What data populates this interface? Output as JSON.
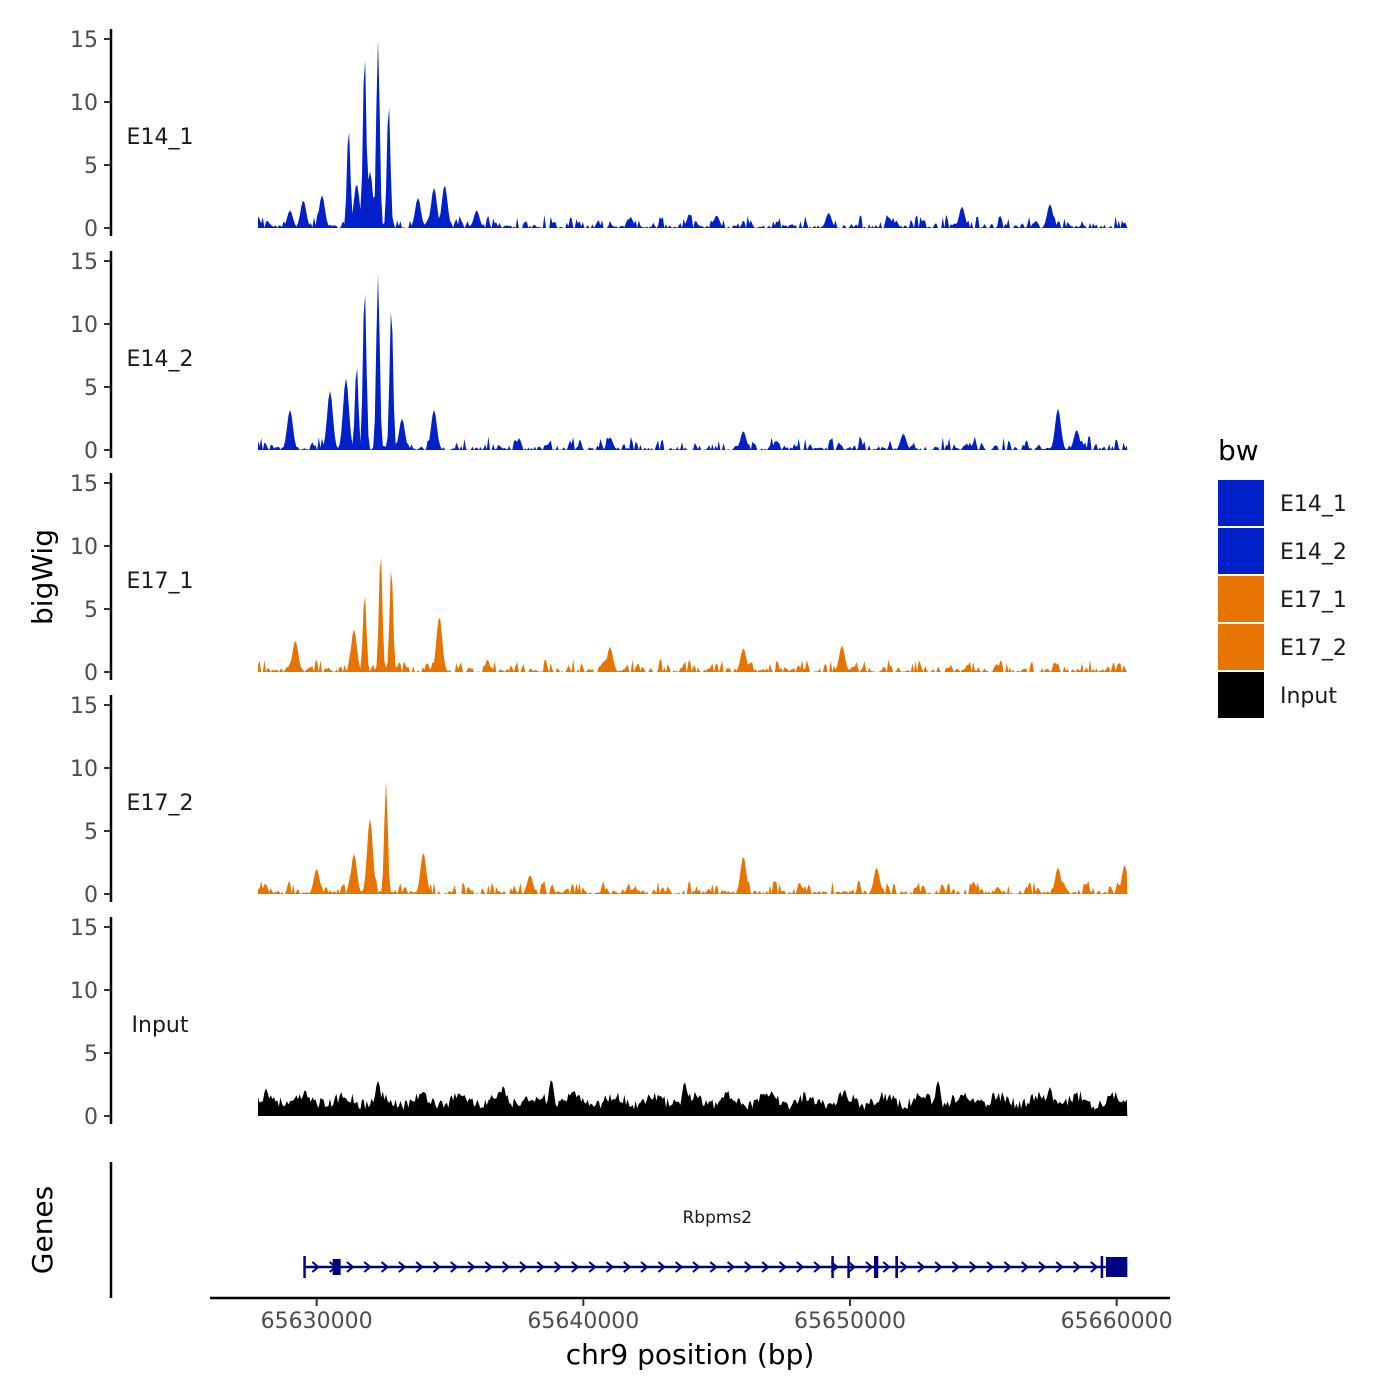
{
  "chart_data": {
    "type": "area",
    "ylabel": "bigWig",
    "xlabel": "chr9 position (bp)",
    "xlim": [
      65626000,
      65662000
    ],
    "data_x_range": [
      65627800,
      65660400
    ],
    "ylim": [
      0,
      15
    ],
    "yticks": [
      "0",
      "5",
      "10",
      "15"
    ],
    "xticks": [
      {
        "value": 65630000,
        "label": "65630000"
      },
      {
        "value": 65640000,
        "label": "65640000"
      },
      {
        "value": 65650000,
        "label": "65650000"
      },
      {
        "value": 65660000,
        "label": "65660000"
      }
    ],
    "series": [
      {
        "name": "E14_1",
        "color": "#0020C8",
        "peaks": [
          {
            "x": 65629000,
            "y": 1.4
          },
          {
            "x": 65629500,
            "y": 2.2
          },
          {
            "x": 65630200,
            "y": 2.6
          },
          {
            "x": 65631200,
            "y": 8.0
          },
          {
            "x": 65631500,
            "y": 3.5
          },
          {
            "x": 65631800,
            "y": 14.0
          },
          {
            "x": 65632000,
            "y": 4.5
          },
          {
            "x": 65632300,
            "y": 15.0
          },
          {
            "x": 65632700,
            "y": 10.0
          },
          {
            "x": 65633800,
            "y": 2.4
          },
          {
            "x": 65634400,
            "y": 3.2
          },
          {
            "x": 65634800,
            "y": 3.4
          },
          {
            "x": 65636000,
            "y": 1.4
          },
          {
            "x": 65645000,
            "y": 1.0
          },
          {
            "x": 65649200,
            "y": 1.2
          },
          {
            "x": 65654200,
            "y": 1.7
          },
          {
            "x": 65657500,
            "y": 1.9
          }
        ]
      },
      {
        "name": "E14_2",
        "color": "#0020C8",
        "peaks": [
          {
            "x": 65629000,
            "y": 3.2
          },
          {
            "x": 65630500,
            "y": 4.7
          },
          {
            "x": 65631100,
            "y": 5.7
          },
          {
            "x": 65631500,
            "y": 6.8
          },
          {
            "x": 65631800,
            "y": 13.0
          },
          {
            "x": 65632300,
            "y": 14.0
          },
          {
            "x": 65632800,
            "y": 11.5
          },
          {
            "x": 65633200,
            "y": 2.5
          },
          {
            "x": 65634400,
            "y": 3.2
          },
          {
            "x": 65641000,
            "y": 1.0
          },
          {
            "x": 65646000,
            "y": 1.5
          },
          {
            "x": 65652000,
            "y": 1.3
          },
          {
            "x": 65657800,
            "y": 3.3
          },
          {
            "x": 65658500,
            "y": 1.6
          }
        ]
      },
      {
        "name": "E17_1",
        "color": "#E87400",
        "peaks": [
          {
            "x": 65629200,
            "y": 2.5
          },
          {
            "x": 65631400,
            "y": 3.4
          },
          {
            "x": 65631800,
            "y": 6.3
          },
          {
            "x": 65632400,
            "y": 9.6
          },
          {
            "x": 65632800,
            "y": 8.5
          },
          {
            "x": 65634600,
            "y": 4.4
          },
          {
            "x": 65641000,
            "y": 2.0
          },
          {
            "x": 65646000,
            "y": 1.9
          },
          {
            "x": 65649700,
            "y": 2.1
          }
        ]
      },
      {
        "name": "E17_2",
        "color": "#E87400",
        "peaks": [
          {
            "x": 65630000,
            "y": 2.0
          },
          {
            "x": 65631400,
            "y": 3.2
          },
          {
            "x": 65632000,
            "y": 6.0
          },
          {
            "x": 65632600,
            "y": 9.0
          },
          {
            "x": 65634000,
            "y": 3.3
          },
          {
            "x": 65638000,
            "y": 1.5
          },
          {
            "x": 65646000,
            "y": 3.0
          },
          {
            "x": 65651000,
            "y": 2.1
          },
          {
            "x": 65657800,
            "y": 2.1
          },
          {
            "x": 65660300,
            "y": 2.3
          }
        ]
      },
      {
        "name": "Input",
        "color": "#000000",
        "peaks": [
          {
            "x": 65628100,
            "y": 2.2
          },
          {
            "x": 65632300,
            "y": 2.8
          },
          {
            "x": 65637000,
            "y": 2.4
          },
          {
            "x": 65638800,
            "y": 2.9
          },
          {
            "x": 65643800,
            "y": 2.7
          },
          {
            "x": 65649800,
            "y": 2.1
          },
          {
            "x": 65653300,
            "y": 2.8
          },
          {
            "x": 65657500,
            "y": 2.3
          }
        ]
      }
    ],
    "legend": {
      "title": "bw",
      "position": "right",
      "items": [
        {
          "label": "E14_1",
          "color": "#0020C8"
        },
        {
          "label": "E14_2",
          "color": "#0020C8"
        },
        {
          "label": "E17_1",
          "color": "#E87400"
        },
        {
          "label": "E17_2",
          "color": "#E87400"
        },
        {
          "label": "Input",
          "color": "#000000"
        }
      ]
    },
    "genes_track": {
      "label": "Genes",
      "color": "#000080",
      "genes": [
        {
          "name": "Rbpms2",
          "strand": "+",
          "start": 65629500,
          "end": 65660400,
          "exons": [
            [
              65629500,
              65629560
            ],
            [
              65630600,
              65630900
            ],
            [
              65649300,
              65649360
            ],
            [
              65649900,
              65649960
            ],
            [
              65650900,
              65651060
            ],
            [
              65651700,
              65651800
            ],
            [
              65659400,
              65659460
            ],
            [
              65659600,
              65660400
            ]
          ]
        }
      ]
    }
  }
}
